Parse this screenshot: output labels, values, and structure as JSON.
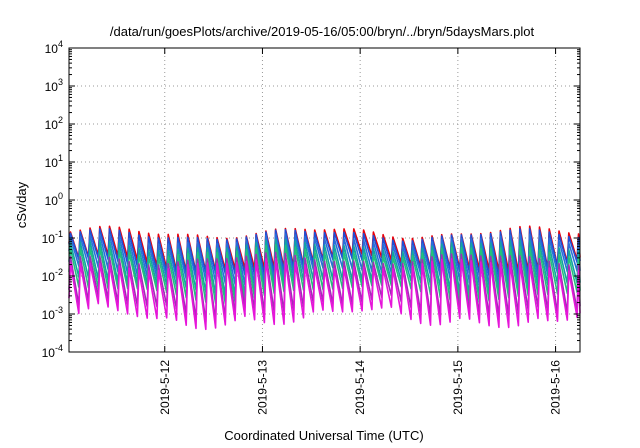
{
  "chart_data": {
    "type": "line",
    "title": "/data/run/goesPlots/archive/2019-05-16/05:00/bryn/../bryn/5daysMars.plot",
    "xlabel": "Coordinated Universal Time (UTC)",
    "ylabel": "cSv/day",
    "yscale": "log",
    "ylim_exponents": [
      -4,
      4
    ],
    "y_tick_base": "10",
    "y_tick_exponents": [
      "-4",
      "-3",
      "-2",
      "-1",
      "0",
      "1",
      "2",
      "3",
      "4"
    ],
    "x_range_days": [
      11.02,
      16.25
    ],
    "x_tick_labels": [
      "2019-5-12",
      "2019-5-13",
      "2019-5-14",
      "2019-5-15",
      "2019-5-16"
    ],
    "x_tick_days": [
      12,
      13,
      14,
      15,
      16
    ],
    "grid": true,
    "legend": "none",
    "description_of_data": "sawtooth dose-rate curves oscillating roughly between 1e-3 and 1e-1 cSv/day",
    "series": [
      {
        "color": "#e8000b",
        "peak": -0.86,
        "trough": -1.7
      },
      {
        "color": "#1f4fd6",
        "peak": -0.92,
        "trough": -1.8
      },
      {
        "color": "#2a6fd8",
        "peak": -1.05,
        "trough": -2.0
      },
      {
        "color": "#13a3a3",
        "peak": -1.2,
        "trough": -2.25
      },
      {
        "color": "#24c07a",
        "peak": -1.35,
        "trough": -2.45
      },
      {
        "color": "#a02eb5",
        "peak": -1.55,
        "trough": -2.7
      },
      {
        "color": "#e615d9",
        "peak": -1.7,
        "trough": -2.95
      }
    ],
    "cycle_days": 0.1
  }
}
